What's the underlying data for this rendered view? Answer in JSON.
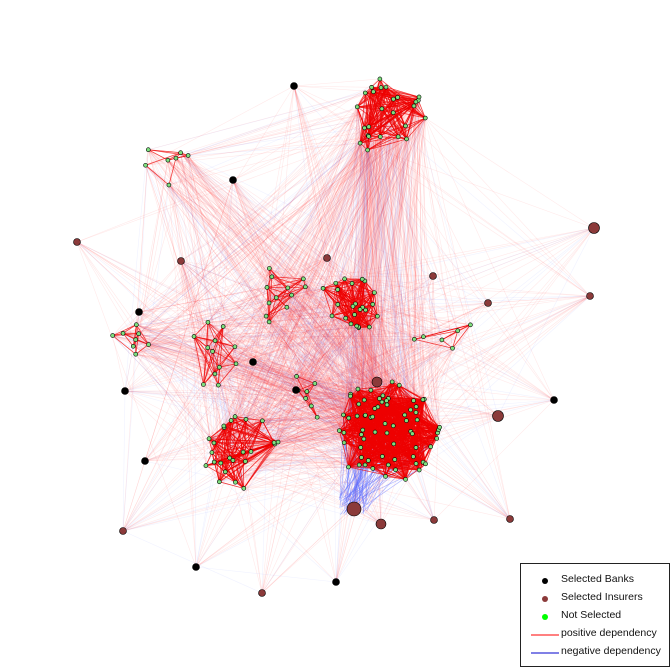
{
  "legend": {
    "items": [
      {
        "label": "Selected Banks",
        "kind": "point",
        "color": "#000000"
      },
      {
        "label": "Selected Insurers",
        "kind": "point",
        "color": "#8b3a3a"
      },
      {
        "label": "Not Selected",
        "kind": "point",
        "color": "#00ff00"
      },
      {
        "label": "positive dependency",
        "kind": "line",
        "color": "#ff0000"
      },
      {
        "label": "negative dependency",
        "kind": "line",
        "color": "#0000cc"
      }
    ]
  },
  "colors": {
    "positive_edge": "#ff3b3b",
    "negative_edge": "#5a6bff",
    "bank": "#000000",
    "insurer": "#8b3a3a",
    "not_selected": "#7fe07f"
  }
}
